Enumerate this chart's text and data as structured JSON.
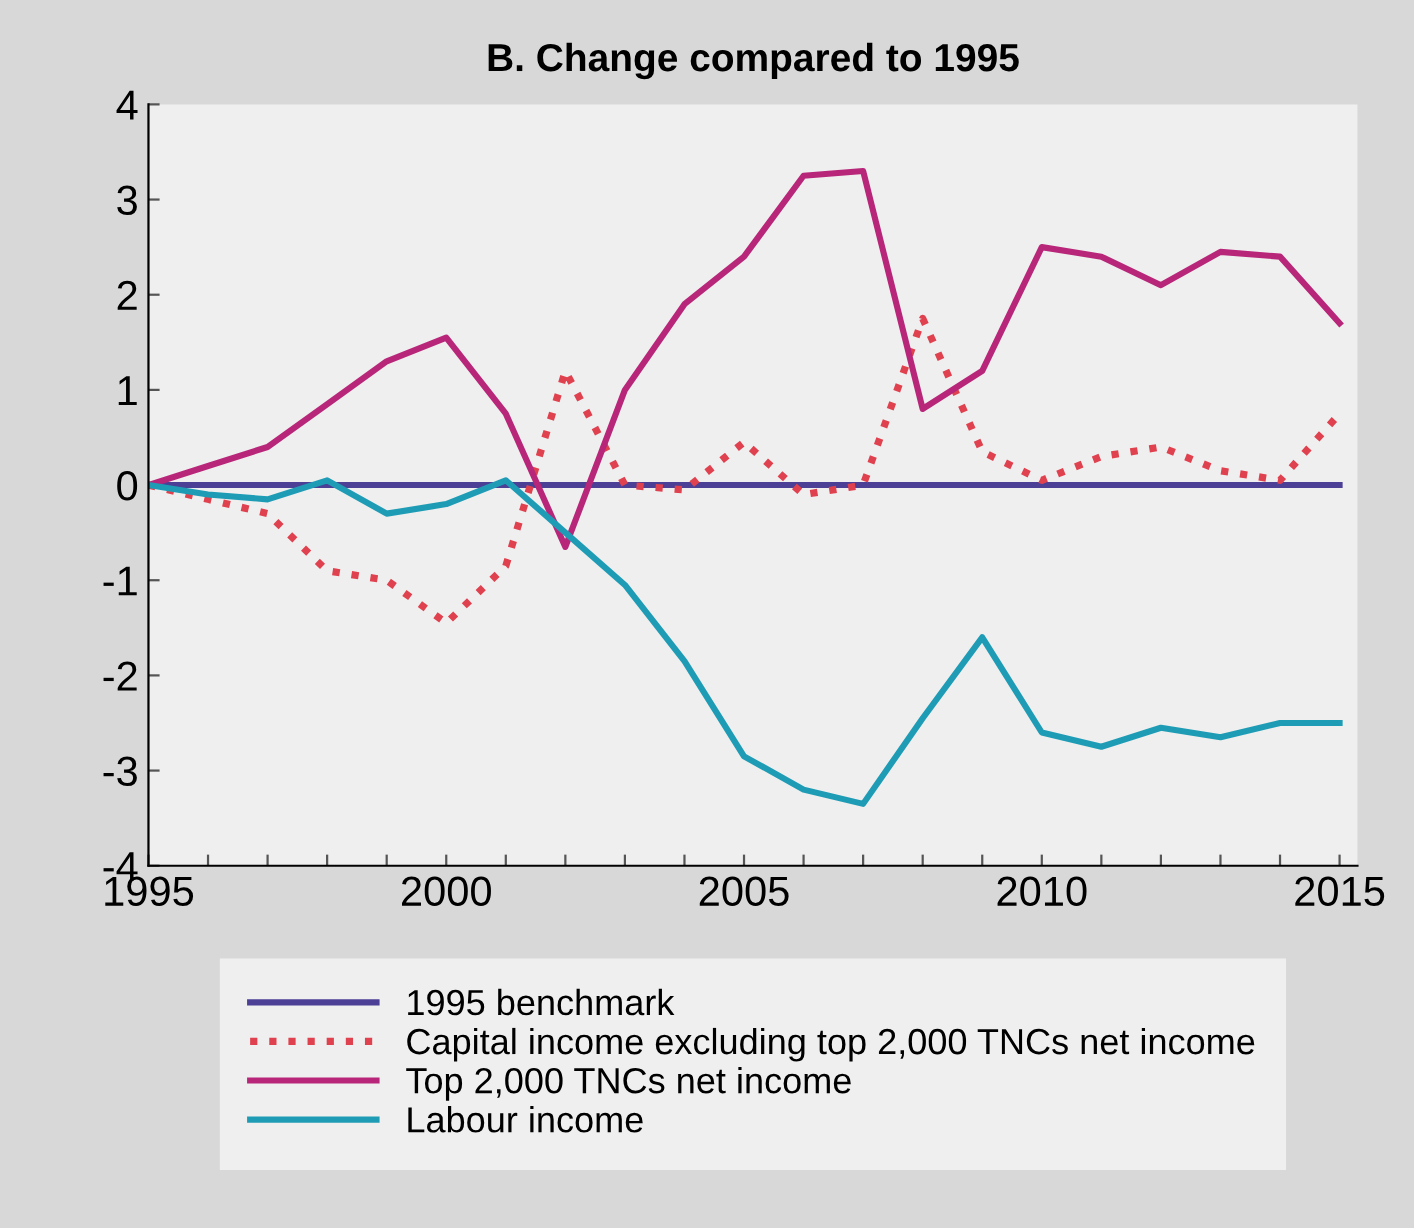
{
  "chart_data": {
    "type": "line",
    "title": "B. Change compared to 1995",
    "x": [
      1995,
      1996,
      1997,
      1998,
      1999,
      2000,
      2001,
      2002,
      2003,
      2004,
      2005,
      2006,
      2007,
      2008,
      2009,
      2010,
      2011,
      2012,
      2013,
      2014,
      2015
    ],
    "series": [
      {
        "name": "1995 benchmark",
        "color": "#4b3f96",
        "line_style": "solid",
        "values": [
          0,
          0,
          0,
          0,
          0,
          0,
          0,
          0,
          0,
          0,
          0,
          0,
          0,
          0,
          0,
          0,
          0,
          0,
          0,
          0,
          0
        ]
      },
      {
        "name": "Capital income excluding top 2,000 TNCs net income",
        "color": "#e0414f",
        "line_style": "dotted",
        "values": [
          0,
          -0.15,
          -0.3,
          -0.9,
          -1.0,
          -1.45,
          -0.85,
          1.2,
          0.0,
          -0.05,
          0.45,
          -0.1,
          0.0,
          1.75,
          0.35,
          0.05,
          0.3,
          0.4,
          0.15,
          0.05,
          0.75
        ]
      },
      {
        "name": "Top 2,000 TNCs net income",
        "color": "#b8267a",
        "line_style": "solid",
        "values": [
          0,
          0.2,
          0.4,
          0.85,
          1.3,
          1.55,
          0.75,
          -0.65,
          1.0,
          1.9,
          2.4,
          3.25,
          3.3,
          0.8,
          1.2,
          2.5,
          2.4,
          2.1,
          2.45,
          2.4,
          1.7
        ]
      },
      {
        "name": "Labour income",
        "color": "#1f9cb5",
        "line_style": "solid",
        "values": [
          0,
          -0.1,
          -0.15,
          0.05,
          -0.3,
          -0.2,
          0.05,
          -0.5,
          -1.05,
          -1.85,
          -2.85,
          -3.2,
          -3.35,
          -2.45,
          -1.6,
          -2.6,
          -2.75,
          -2.55,
          -2.65,
          -2.5,
          -2.5
        ]
      }
    ],
    "xlim": [
      1995,
      2015.3
    ],
    "ylim": [
      -4,
      4
    ],
    "xticks": [
      1995,
      {
        "value": 1996,
        "label": null
      },
      {
        "value": 1997,
        "label": null
      },
      {
        "value": 1998,
        "label": null
      },
      {
        "value": 1999,
        "label": null
      },
      2000,
      {
        "value": 2001,
        "label": null
      },
      {
        "value": 2002,
        "label": null
      },
      {
        "value": 2003,
        "label": null
      },
      {
        "value": 2004,
        "label": null
      },
      2005,
      {
        "value": 2006,
        "label": null
      },
      {
        "value": 2007,
        "label": null
      },
      {
        "value": 2008,
        "label": null
      },
      {
        "value": 2009,
        "label": null
      },
      2010,
      {
        "value": 2011,
        "label": null
      },
      {
        "value": 2012,
        "label": null
      },
      {
        "value": 2013,
        "label": null
      },
      {
        "value": 2014,
        "label": null
      },
      2015
    ],
    "yticks": [
      -4,
      -3,
      -2,
      -1,
      0,
      1,
      2,
      3,
      4
    ],
    "grid": false,
    "legend": "bottom",
    "marker": "none"
  }
}
